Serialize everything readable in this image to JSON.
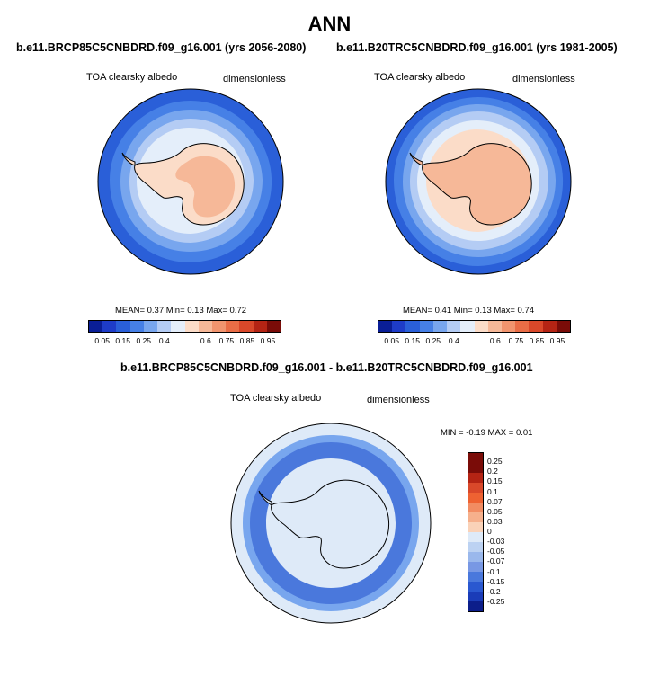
{
  "title": "ANN",
  "panels": {
    "left": {
      "case": "b.e11.BRCP85C5CNBDRD.f09_g16.001 (yrs 2056-2080)",
      "variable": "TOA clearsky albedo",
      "units": "dimensionless",
      "stats": "MEAN=   0.37  Min=   0.13  Max=   0.72"
    },
    "right": {
      "case": "b.e11.B20TRC5CNBDRD.f09_g16.001 (yrs 1981-2005)",
      "variable": "TOA clearsky albedo",
      "units": "dimensionless",
      "stats": "MEAN=   0.41  Min=   0.13  Max=   0.74"
    },
    "diff": {
      "case": "b.e11.BRCP85C5CNBDRD.f09_g16.001 - b.e11.B20TRC5CNBDRD.f09_g16.001",
      "variable": "TOA clearsky albedo",
      "units": "dimensionless",
      "stats": "MIN =  -0.19 MAX =   0.01"
    }
  },
  "colorbar_abs": {
    "colors": [
      "#0a1e96",
      "#1e3cc8",
      "#2a5fd8",
      "#4680e6",
      "#78a6ee",
      "#b4ccf4",
      "#e4eefa",
      "#fbdcc8",
      "#f6b898",
      "#f1946e",
      "#e96d46",
      "#d9482a",
      "#b42414",
      "#7a0c08"
    ],
    "tick_labels": [
      "0.05",
      "0.15",
      "0.25",
      "0.4",
      "0.6",
      "0.75",
      "0.85",
      "0.95"
    ]
  },
  "colorbar_diff": {
    "colors": [
      "#7a0c08",
      "#b42414",
      "#d9482a",
      "#ee6232",
      "#f28c62",
      "#f6b08c",
      "#fad2b8",
      "#deeaf8",
      "#bcd2f2",
      "#9ab8ec",
      "#7898e4",
      "#4a78dc",
      "#2a58d0",
      "#1a3cb8",
      "#0c1e8a"
    ],
    "tick_labels": [
      "0.25",
      "0.2",
      "0.15",
      "0.1",
      "0.07",
      "0.05",
      "0.03",
      "0",
      "-0.03",
      "-0.05",
      "-0.07",
      "-0.1",
      "-0.15",
      "-0.2",
      "-0.25"
    ]
  },
  "fill_colors": {
    "ocean_deep": "#2a5fd8",
    "ocean_mid": "#4680e6",
    "ocean_light": "#78a6ee",
    "ice_edge": "#b4ccf4",
    "sea_ice": "#e4eefa",
    "land_low": "#fbdcc8",
    "land_high": "#f6b898",
    "diff_bg": "#deeaf8",
    "diff_ring": "#4a78dc",
    "diff_ring_light": "#78a6ee"
  }
}
